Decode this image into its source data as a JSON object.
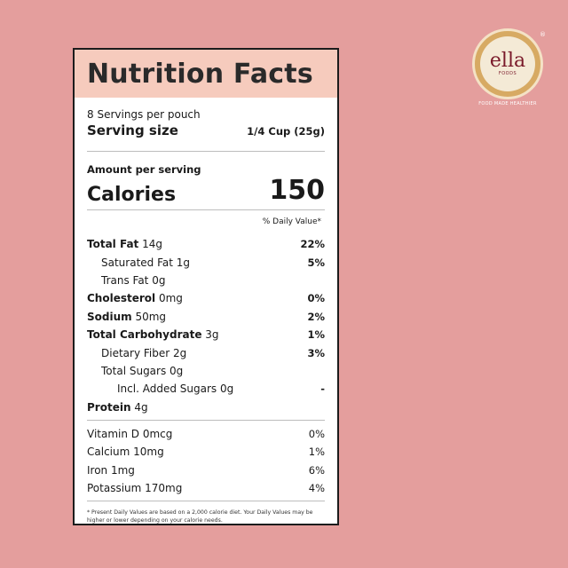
{
  "label": {
    "title": "Nutrition Facts",
    "servings_per": "8 Servings per pouch",
    "serving_size_label": "Serving size",
    "serving_size_value": "1/4 Cup (25g)",
    "amount_per_serving": "Amount per serving",
    "calories_label": "Calories",
    "calories_value": "150",
    "dv_header": "% Daily Value*",
    "nutrients": [
      {
        "name": "Total Fat",
        "amount": "14g",
        "dv": "22%"
      },
      {
        "name": "Saturated Fat",
        "amount": "1g",
        "dv": "5%"
      },
      {
        "name": "Trans Fat",
        "amount": "0g",
        "dv": ""
      },
      {
        "name": "Cholesterol",
        "amount": "0mg",
        "dv": "0%"
      },
      {
        "name": "Sodium",
        "amount": "50mg",
        "dv": "2%"
      },
      {
        "name": "Total Carbohydrate",
        "amount": "3g",
        "dv": "1%"
      },
      {
        "name": "Dietary Fiber",
        "amount": "2g",
        "dv": "3%"
      },
      {
        "name": "Total Sugars",
        "amount": "0g",
        "dv": ""
      },
      {
        "name": "Incl. Added Sugars",
        "amount": "0g",
        "dv": "-"
      },
      {
        "name": "Protein",
        "amount": "4g",
        "dv": ""
      }
    ],
    "vitamins": [
      {
        "text": "Vitamin D 0mcg",
        "dv": "0%"
      },
      {
        "text": "Calcium 10mg",
        "dv": "1%"
      },
      {
        "text": "Iron 1mg",
        "dv": "6%"
      },
      {
        "text": "Potassium 170mg",
        "dv": "4%"
      }
    ],
    "footnote": "* Present Daily Values are based on a 2,000 calorie diet. Your Daily Values may be higher or lower depending on your calorie needs."
  },
  "brand": {
    "name": "ella",
    "sub": "FOODS",
    "tagline": "FOOD MADE HEALTHIER",
    "registered": "®"
  },
  "colors": {
    "background": "#e49e9d",
    "title_band": "#f6cbbd",
    "logo_gold": "#d7aa63",
    "logo_wine": "#7a1a2a"
  }
}
